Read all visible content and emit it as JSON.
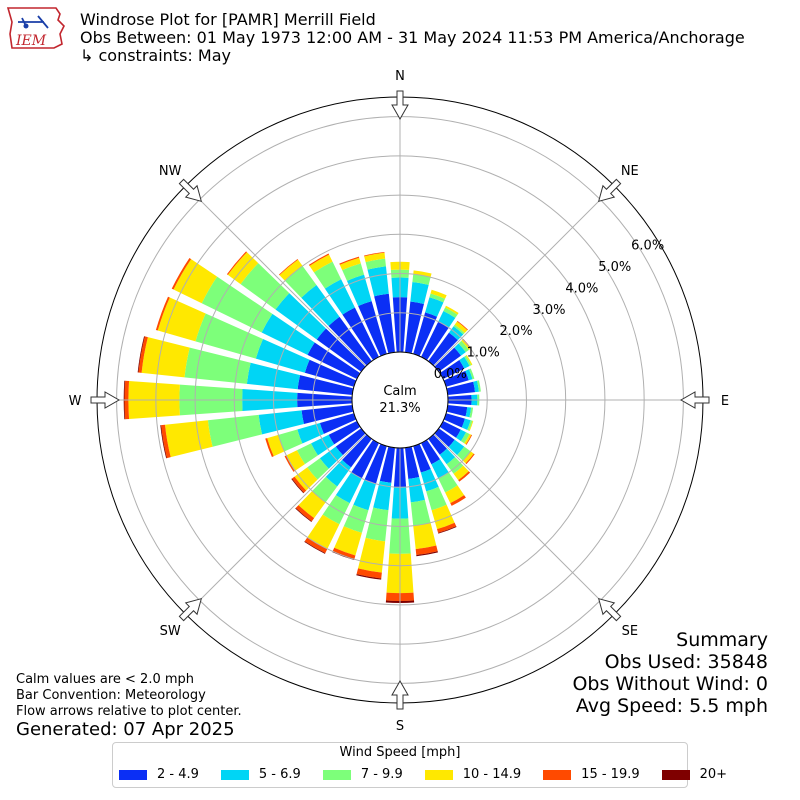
{
  "header": {
    "logo_text": "IEM",
    "title_line1": "Windrose Plot for [PAMR] Merrill Field",
    "title_line2": "Obs Between: 01 May 1973 12:00 AM - 31 May 2024 11:53 PM America/Anchorage",
    "title_line3": "↳ constraints: May"
  },
  "notes": {
    "calm_def": "Calm values are < 2.0 mph",
    "bar_convention": "Bar Convention: Meteorology",
    "flow_arrows": "Flow arrows relative to plot center.",
    "generated": "Generated: 07 Apr 2025"
  },
  "summary": {
    "title": "Summary",
    "obs_used": "Obs Used: 35848",
    "obs_without_wind": "Obs Without Wind: 0",
    "avg_speed": "Avg Speed: 5.5 mph"
  },
  "legend": {
    "title": "Wind Speed [mph]",
    "items": [
      {
        "label": "2 - 4.9",
        "color": "#0b2ff5"
      },
      {
        "label": "5 - 6.9",
        "color": "#00d5f5"
      },
      {
        "label": "7 - 9.9",
        "color": "#7dff7a"
      },
      {
        "label": "10 - 14.9",
        "color": "#ffe800"
      },
      {
        "label": "15 - 19.9",
        "color": "#ff4a00"
      },
      {
        "label": "20+",
        "color": "#7f0000"
      }
    ]
  },
  "chart_data": {
    "type": "windrose",
    "direction_labels": [
      "N",
      "NE",
      "E",
      "SE",
      "S",
      "SW",
      "W",
      "NW"
    ],
    "radial_ticks": [
      "0.0%",
      "1.0%",
      "2.0%",
      "3.0%",
      "4.0%",
      "5.0%",
      "6.0%"
    ],
    "rmax": 6.5,
    "calm_label": "Calm",
    "calm_value": "21.3%",
    "bin_width_deg": 10,
    "bins": [
      "2 - 4.9",
      "5 - 6.9",
      "7 - 9.9",
      "10 - 14.9",
      "15 - 19.9",
      "20+"
    ],
    "directions": [
      {
        "deg": 0,
        "values": [
          1.4,
          0.5,
          0.2,
          0.2,
          0.0,
          0.0
        ]
      },
      {
        "deg": 10,
        "values": [
          1.3,
          0.5,
          0.2,
          0.1,
          0.0,
          0.0
        ]
      },
      {
        "deg": 20,
        "values": [
          1.1,
          0.4,
          0.1,
          0.1,
          0.0,
          0.0
        ]
      },
      {
        "deg": 30,
        "values": [
          1.0,
          0.3,
          0.1,
          0.05,
          0.0,
          0.0
        ]
      },
      {
        "deg": 40,
        "values": [
          0.9,
          0.2,
          0.05,
          0.1,
          0.02,
          0.0
        ]
      },
      {
        "deg": 50,
        "values": [
          0.7,
          0.15,
          0.1,
          0.05,
          0.02,
          0.0
        ]
      },
      {
        "deg": 60,
        "values": [
          0.6,
          0.15,
          0.05,
          0.03,
          0.0,
          0.0
        ]
      },
      {
        "deg": 70,
        "values": [
          0.6,
          0.1,
          0.05,
          0.0,
          0.0,
          0.0
        ]
      },
      {
        "deg": 80,
        "values": [
          0.7,
          0.1,
          0.05,
          0.0,
          0.0,
          0.0
        ]
      },
      {
        "deg": 90,
        "values": [
          0.6,
          0.15,
          0.05,
          0.0,
          0.0,
          0.0
        ]
      },
      {
        "deg": 100,
        "values": [
          0.5,
          0.1,
          0.05,
          0.0,
          0.0,
          0.0
        ]
      },
      {
        "deg": 110,
        "values": [
          0.5,
          0.15,
          0.05,
          0.02,
          0.0,
          0.0
        ]
      },
      {
        "deg": 120,
        "values": [
          0.5,
          0.15,
          0.1,
          0.05,
          0.02,
          0.0
        ]
      },
      {
        "deg": 130,
        "values": [
          0.5,
          0.3,
          0.2,
          0.1,
          0.03,
          0.0
        ]
      },
      {
        "deg": 140,
        "values": [
          0.5,
          0.3,
          0.3,
          0.2,
          0.05,
          0.0
        ]
      },
      {
        "deg": 150,
        "values": [
          0.6,
          0.4,
          0.4,
          0.3,
          0.08,
          0.0
        ]
      },
      {
        "deg": 160,
        "values": [
          0.7,
          0.5,
          0.5,
          0.5,
          0.1,
          0.02
        ]
      },
      {
        "deg": 170,
        "values": [
          0.8,
          0.6,
          0.6,
          0.6,
          0.15,
          0.03
        ]
      },
      {
        "deg": 180,
        "values": [
          1.0,
          0.8,
          0.9,
          1.0,
          0.2,
          0.05
        ]
      },
      {
        "deg": 190,
        "values": [
          0.9,
          0.7,
          0.8,
          0.8,
          0.15,
          0.03
        ]
      },
      {
        "deg": 200,
        "values": [
          1.0,
          0.7,
          0.6,
          0.6,
          0.1,
          0.02
        ]
      },
      {
        "deg": 210,
        "values": [
          1.0,
          0.7,
          0.6,
          0.7,
          0.12,
          0.02
        ]
      },
      {
        "deg": 220,
        "values": [
          0.9,
          0.6,
          0.5,
          0.5,
          0.1,
          0.02
        ]
      },
      {
        "deg": 230,
        "values": [
          0.8,
          0.5,
          0.4,
          0.4,
          0.08,
          0.02
        ]
      },
      {
        "deg": 240,
        "values": [
          0.8,
          0.5,
          0.4,
          0.3,
          0.05,
          0.0
        ]
      },
      {
        "deg": 250,
        "values": [
          0.9,
          0.6,
          0.5,
          0.3,
          0.05,
          0.0
        ]
      },
      {
        "deg": 260,
        "values": [
          1.3,
          1.1,
          1.3,
          1.1,
          0.1,
          0.02
        ]
      },
      {
        "deg": 270,
        "values": [
          1.4,
          1.4,
          1.6,
          1.3,
          0.1,
          0.02
        ]
      },
      {
        "deg": 280,
        "values": [
          1.4,
          1.3,
          1.6,
          1.1,
          0.08,
          0.02
        ]
      },
      {
        "deg": 290,
        "values": [
          1.3,
          1.3,
          1.6,
          1.0,
          0.05,
          0.0
        ]
      },
      {
        "deg": 300,
        "values": [
          1.4,
          1.3,
          1.7,
          0.8,
          0.05,
          0.0
        ]
      },
      {
        "deg": 310,
        "values": [
          1.4,
          1.3,
          1.1,
          0.4,
          0.03,
          0.0
        ]
      },
      {
        "deg": 320,
        "values": [
          1.4,
          1.0,
          0.6,
          0.2,
          0.02,
          0.0
        ]
      },
      {
        "deg": 330,
        "values": [
          1.4,
          0.8,
          0.5,
          0.2,
          0.03,
          0.0
        ]
      },
      {
        "deg": 340,
        "values": [
          1.4,
          0.7,
          0.3,
          0.15,
          0.03,
          0.0
        ]
      },
      {
        "deg": 350,
        "values": [
          1.5,
          0.7,
          0.2,
          0.15,
          0.02,
          0.0
        ]
      }
    ]
  }
}
